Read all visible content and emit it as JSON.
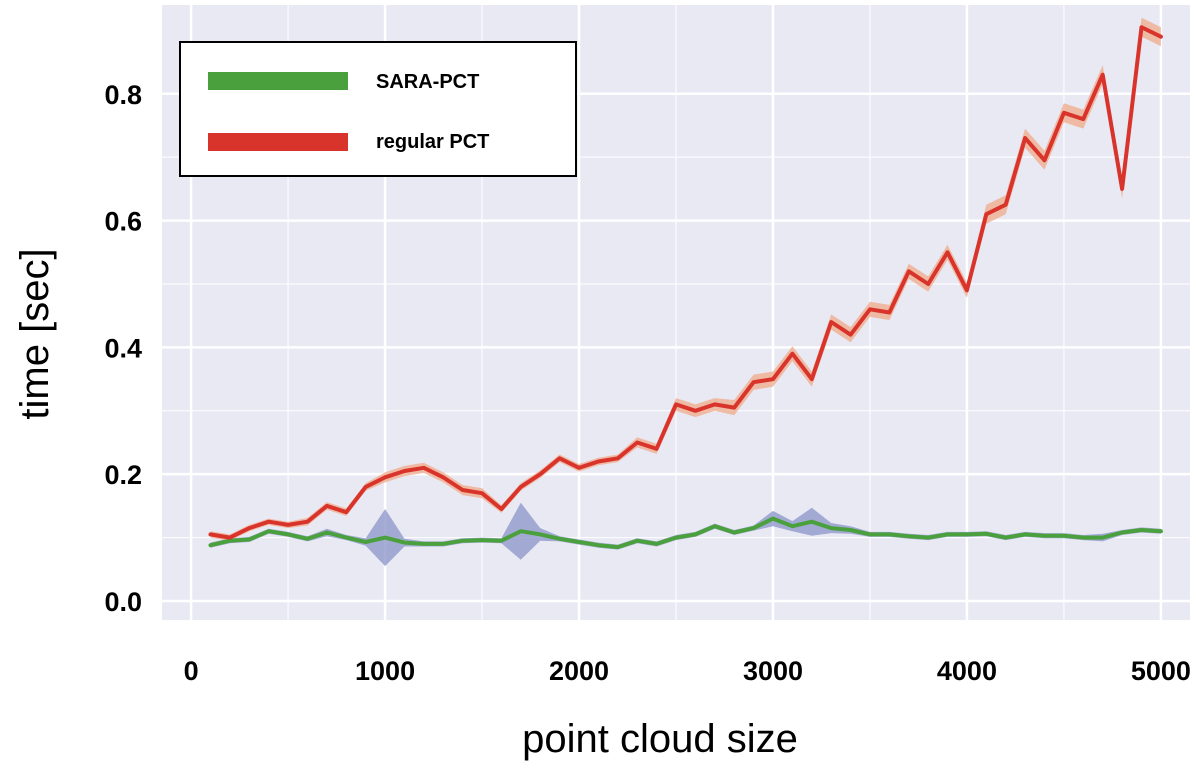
{
  "chart_data": {
    "type": "line",
    "title": "",
    "xlabel": "point cloud size",
    "ylabel": "time [sec]",
    "xlim": [
      -150,
      5150
    ],
    "ylim": [
      -0.03,
      0.94
    ],
    "xticks": [
      0,
      1000,
      2000,
      3000,
      4000,
      5000
    ],
    "xtick_labels": [
      "0",
      "1000",
      "2000",
      "3000",
      "4000",
      "5000"
    ],
    "yticks": [
      0.0,
      0.2,
      0.4,
      0.6,
      0.8
    ],
    "ytick_labels": [
      "0.0",
      "0.2",
      "0.4",
      "0.6",
      "0.8"
    ],
    "grid": true,
    "legend_position": "top-left",
    "series": [
      {
        "name": "SARA-PCT",
        "color": "#4aa03c",
        "band_color": "#8a93c8",
        "x": [
          100,
          200,
          300,
          400,
          500,
          600,
          700,
          800,
          900,
          1000,
          1100,
          1200,
          1300,
          1400,
          1500,
          1600,
          1700,
          1800,
          1900,
          2000,
          2100,
          2200,
          2300,
          2400,
          2500,
          2600,
          2700,
          2800,
          2900,
          3000,
          3100,
          3200,
          3300,
          3400,
          3500,
          3600,
          3700,
          3800,
          3900,
          4000,
          4100,
          4200,
          4300,
          4400,
          4500,
          4600,
          4700,
          4800,
          4900,
          5000
        ],
        "y": [
          0.088,
          0.095,
          0.097,
          0.11,
          0.105,
          0.098,
          0.108,
          0.1,
          0.093,
          0.1,
          0.092,
          0.09,
          0.09,
          0.095,
          0.096,
          0.095,
          0.11,
          0.105,
          0.098,
          0.093,
          0.088,
          0.085,
          0.095,
          0.09,
          0.1,
          0.105,
          0.118,
          0.108,
          0.115,
          0.13,
          0.118,
          0.125,
          0.115,
          0.112,
          0.105,
          0.105,
          0.102,
          0.1,
          0.105,
          0.105,
          0.106,
          0.1,
          0.105,
          0.103,
          0.103,
          0.1,
          0.1,
          0.108,
          0.112,
          0.11
        ],
        "band": [
          0.004,
          0.004,
          0.004,
          0.004,
          0.004,
          0.004,
          0.006,
          0.004,
          0.006,
          0.045,
          0.006,
          0.004,
          0.004,
          0.004,
          0.004,
          0.004,
          0.045,
          0.01,
          0.004,
          0.004,
          0.004,
          0.004,
          0.004,
          0.004,
          0.004,
          0.004,
          0.004,
          0.004,
          0.004,
          0.012,
          0.008,
          0.022,
          0.008,
          0.006,
          0.004,
          0.004,
          0.004,
          0.004,
          0.004,
          0.004,
          0.004,
          0.004,
          0.004,
          0.004,
          0.004,
          0.004,
          0.006,
          0.004,
          0.004,
          0.004
        ]
      },
      {
        "name": "regular PCT",
        "color": "#d9342b",
        "band_color": "#f0a98a",
        "x": [
          100,
          200,
          300,
          400,
          500,
          600,
          700,
          800,
          900,
          1000,
          1100,
          1200,
          1300,
          1400,
          1500,
          1600,
          1700,
          1800,
          1900,
          2000,
          2100,
          2200,
          2300,
          2400,
          2500,
          2600,
          2700,
          2800,
          2900,
          3000,
          3100,
          3200,
          3300,
          3400,
          3500,
          3600,
          3700,
          3800,
          3900,
          4000,
          4100,
          4200,
          4300,
          4400,
          4500,
          4600,
          4700,
          4800,
          4900,
          5000
        ],
        "y": [
          0.105,
          0.1,
          0.115,
          0.125,
          0.12,
          0.125,
          0.15,
          0.14,
          0.18,
          0.195,
          0.205,
          0.21,
          0.195,
          0.175,
          0.17,
          0.145,
          0.18,
          0.2,
          0.225,
          0.21,
          0.22,
          0.225,
          0.25,
          0.24,
          0.31,
          0.3,
          0.31,
          0.305,
          0.345,
          0.35,
          0.39,
          0.35,
          0.44,
          0.42,
          0.46,
          0.455,
          0.52,
          0.5,
          0.55,
          0.49,
          0.61,
          0.625,
          0.73,
          0.695,
          0.77,
          0.76,
          0.83,
          0.65,
          0.905,
          0.89
        ],
        "band": [
          0.005,
          0.005,
          0.005,
          0.005,
          0.005,
          0.006,
          0.006,
          0.006,
          0.006,
          0.008,
          0.008,
          0.008,
          0.008,
          0.008,
          0.008,
          0.006,
          0.006,
          0.006,
          0.006,
          0.006,
          0.006,
          0.006,
          0.008,
          0.008,
          0.01,
          0.01,
          0.01,
          0.012,
          0.012,
          0.012,
          0.012,
          0.012,
          0.012,
          0.012,
          0.012,
          0.012,
          0.012,
          0.012,
          0.012,
          0.012,
          0.015,
          0.015,
          0.015,
          0.015,
          0.015,
          0.015,
          0.015,
          0.015,
          0.015,
          0.015
        ]
      }
    ]
  }
}
